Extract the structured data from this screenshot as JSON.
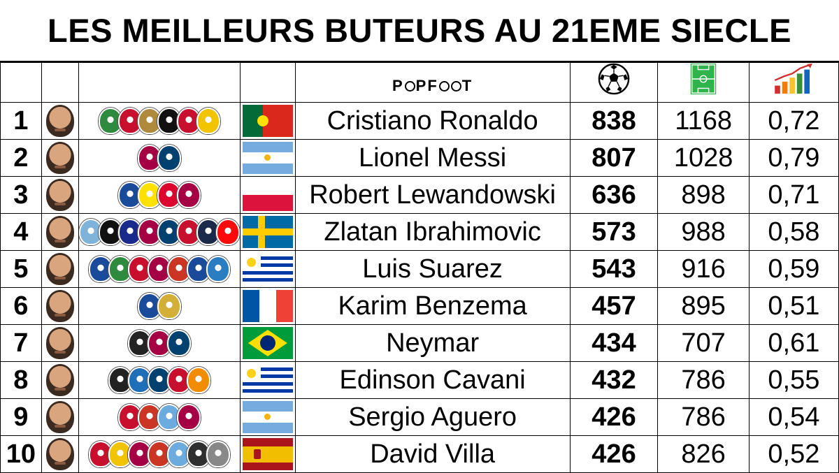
{
  "title": "LES MEILLEURS BUTEURS AU 21EME SIECLE",
  "brand": "POPFOOT",
  "header_icons": {
    "goals": "soccer-ball-icon",
    "matches": "football-pitch-icon",
    "ratio": "growth-bar-chart-icon"
  },
  "players": [
    {
      "rank": "1",
      "name": "Cristiano Ronaldo",
      "goals": "838",
      "matches": "1168",
      "ratio": "0,72",
      "clubs": [
        "#2e8b3d",
        "#c8102e",
        "#b08a3c",
        "#111111",
        "#c8102e",
        "#f2c400"
      ],
      "flag": "portugal"
    },
    {
      "rank": "2",
      "name": "Lionel Messi",
      "goals": "807",
      "matches": "1028",
      "ratio": "0,79",
      "clubs": [
        "#a50044",
        "#004170"
      ],
      "flag": "argentina"
    },
    {
      "rank": "3",
      "name": "Robert Lewandowski",
      "goals": "636",
      "matches": "898",
      "ratio": "0,71",
      "clubs": [
        "#1a4b9b",
        "#fde100",
        "#dc052d",
        "#a50044"
      ],
      "flag": "poland"
    },
    {
      "rank": "4",
      "name": "Zlatan Ibrahimovic",
      "goals": "573",
      "matches": "988",
      "ratio": "0,58",
      "clubs": [
        "#7fb3d9",
        "#111111",
        "#1a2a8c",
        "#a50044",
        "#004170",
        "#c8102e",
        "#1b2a4a",
        "#fb090b"
      ],
      "flag": "sweden"
    },
    {
      "rank": "5",
      "name": "Luis Suarez",
      "goals": "543",
      "matches": "916",
      "ratio": "0,59",
      "clubs": [
        "#1a4b9b",
        "#2e8b3d",
        "#c8102e",
        "#a50044",
        "#cb3524",
        "#1a4b9b",
        "#2a7dc1"
      ],
      "flag": "uruguay"
    },
    {
      "rank": "6",
      "name": "Karim Benzema",
      "goals": "457",
      "matches": "895",
      "ratio": "0,51",
      "clubs": [
        "#1a4b9b",
        "#d4af37"
      ],
      "flag": "france"
    },
    {
      "rank": "7",
      "name": "Neymar",
      "goals": "434",
      "matches": "707",
      "ratio": "0,61",
      "clubs": [
        "#222222",
        "#a50044",
        "#004170"
      ],
      "flag": "brazil"
    },
    {
      "rank": "8",
      "name": "Edinson Cavani",
      "goals": "432",
      "matches": "786",
      "ratio": "0,55",
      "clubs": [
        "#222222",
        "#1f6fb8",
        "#004170",
        "#c8102e",
        "#f28c00"
      ],
      "flag": "uruguay"
    },
    {
      "rank": "9",
      "name": "Sergio Aguero",
      "goals": "426",
      "matches": "786",
      "ratio": "0,54",
      "clubs": [
        "#c8102e",
        "#cb3524",
        "#6cabdd",
        "#a50044"
      ],
      "flag": "argentina"
    },
    {
      "rank": "10",
      "name": "David Villa",
      "goals": "426",
      "matches": "826",
      "ratio": "0,52",
      "clubs": [
        "#c8102e",
        "#f2c400",
        "#a50044",
        "#cb3524",
        "#6cabdd",
        "#2f2f2f",
        "#888888"
      ],
      "flag": "spain"
    }
  ]
}
